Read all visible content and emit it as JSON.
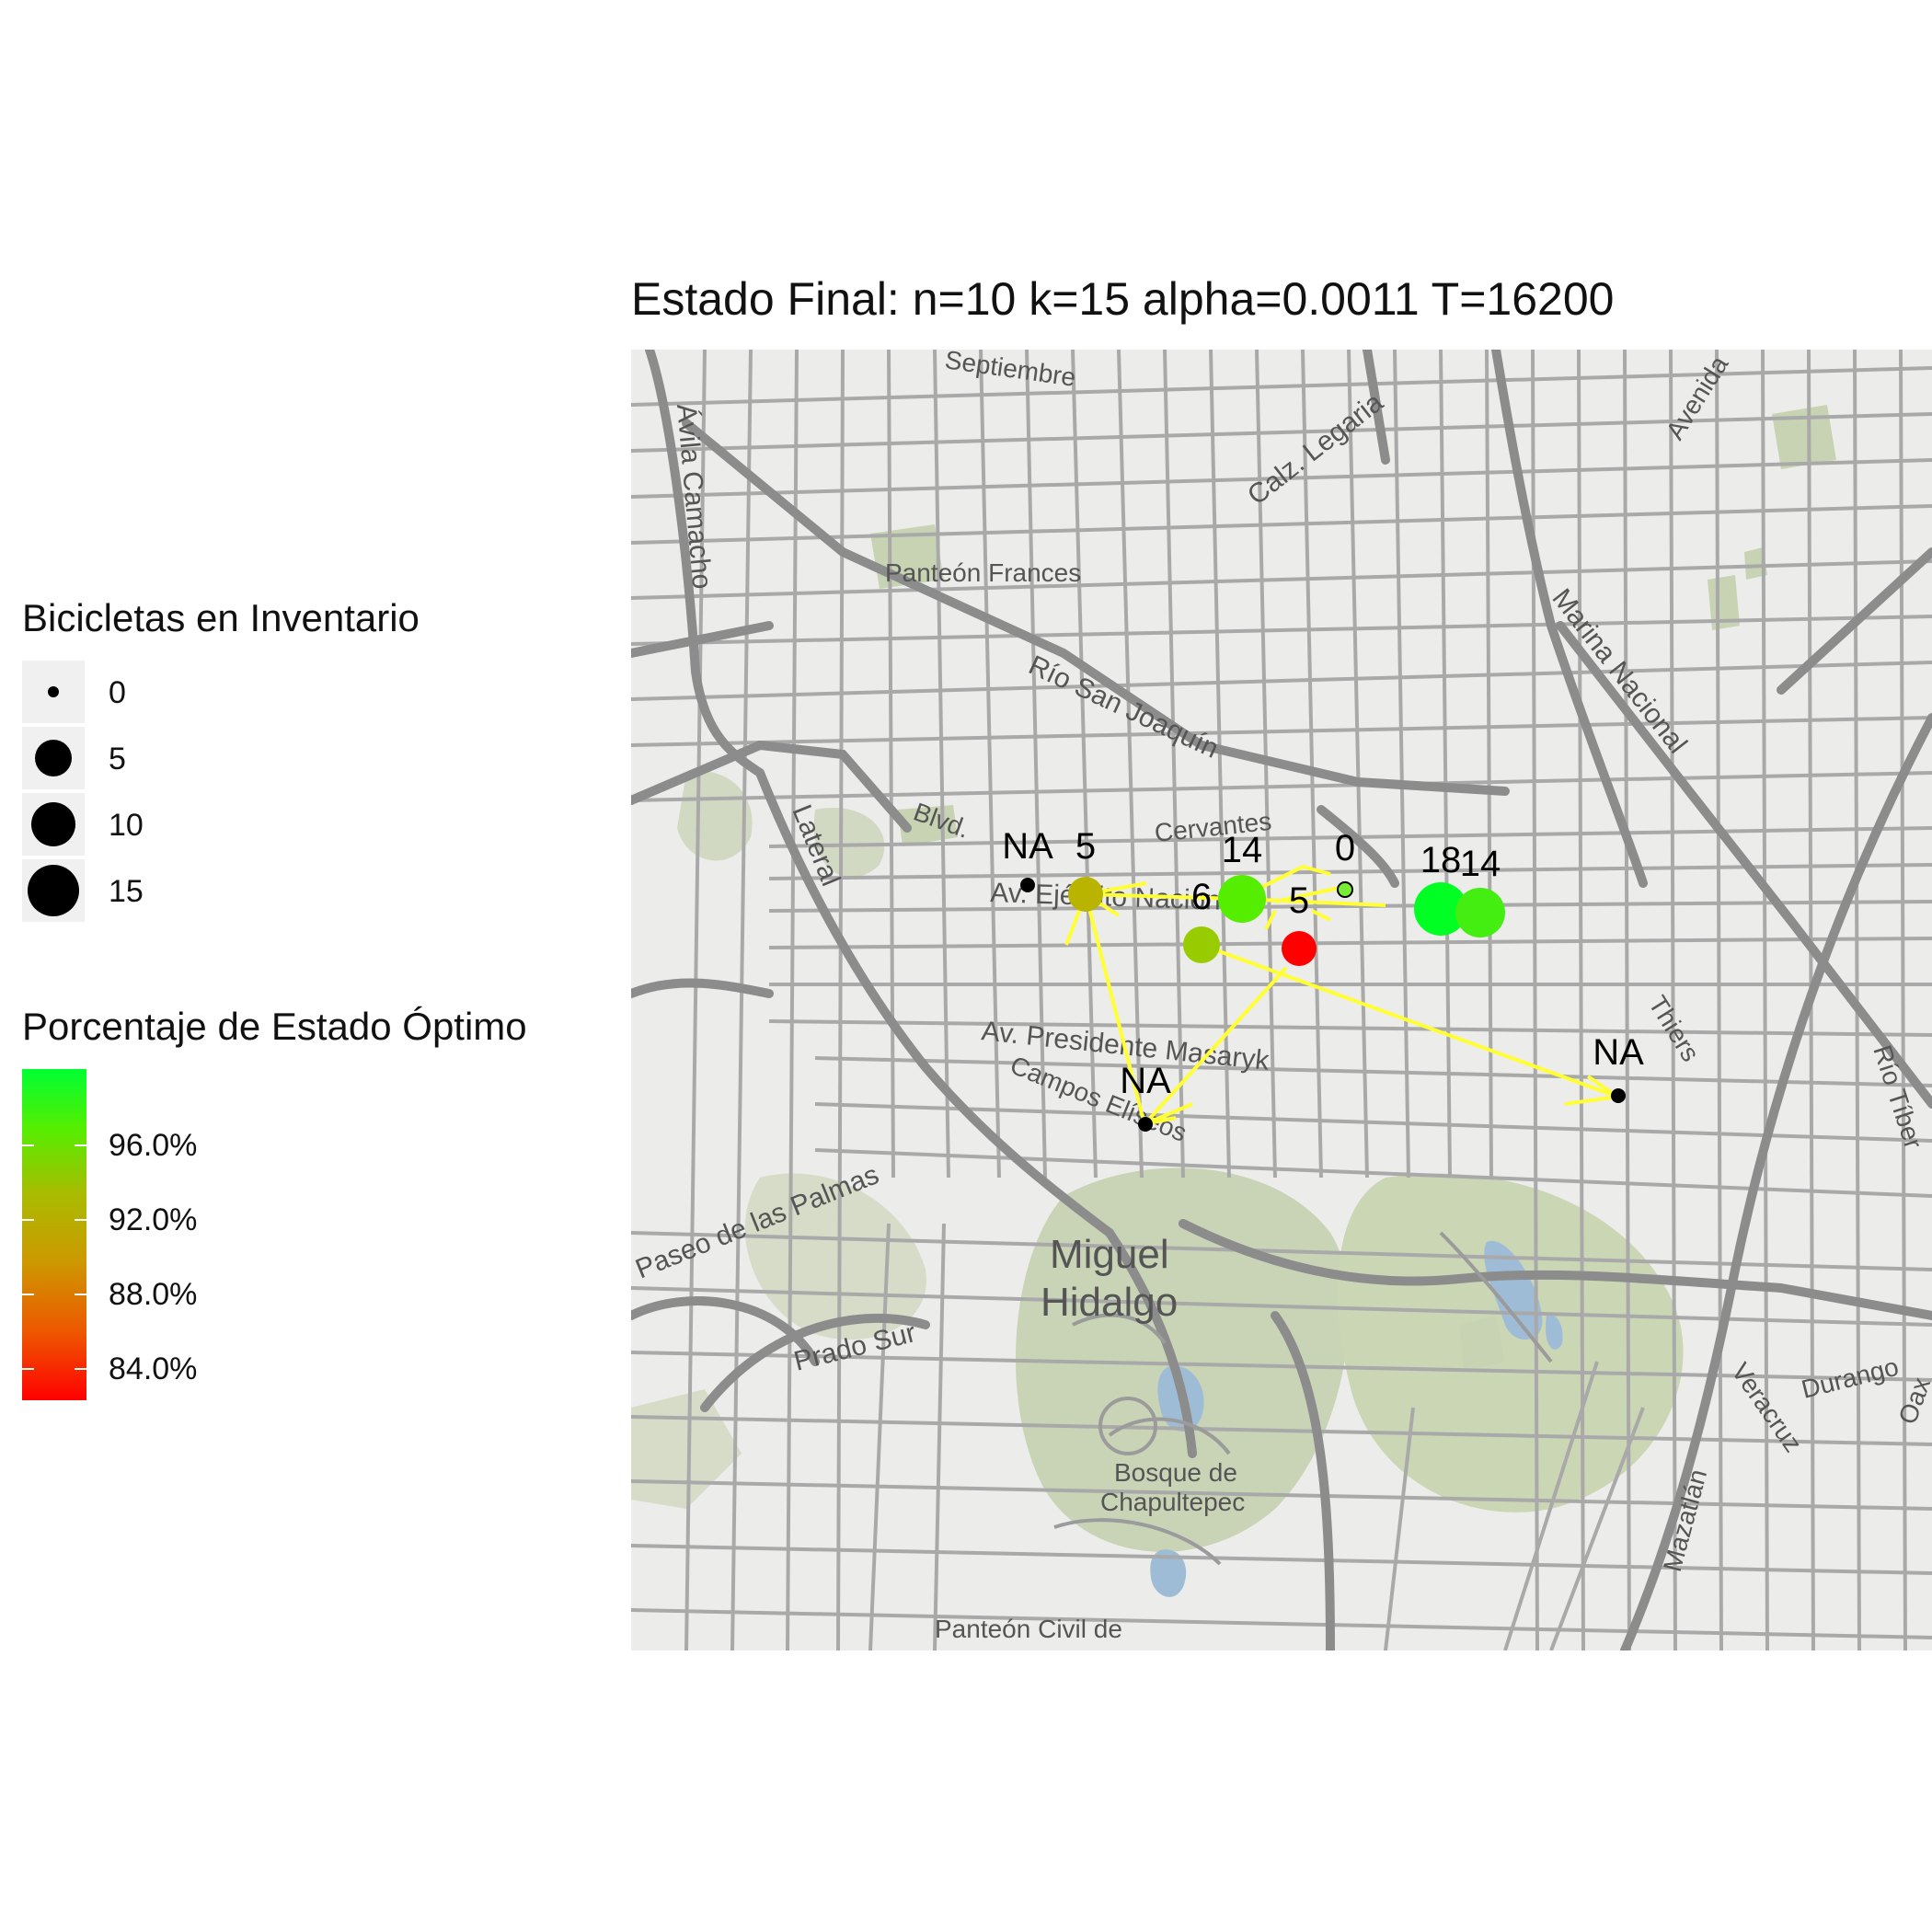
{
  "title": "Estado Final: n=10 k=15 alpha=0.0011 T=16200",
  "legend_size": {
    "title": "Bicicletas en Inventario",
    "entries": [
      "0",
      "5",
      "10",
      "15"
    ]
  },
  "legend_color": {
    "title": "Porcentaje de Estado Óptimo",
    "ticks": [
      "96.0%",
      "92.0%",
      "88.0%",
      "84.0%"
    ],
    "color_high": "#00ff33",
    "color_low": "#ff0000"
  },
  "map_labels": {
    "panteon_frances": "Panteón Frances",
    "rio_san_joaquin": "Río San Joaquín",
    "calz_legaria": "Calz. Legaria",
    "marina_nacional": "Marina Nacional",
    "camacho": "Ávila Camacho",
    "lateral": "Lateral",
    "blvd": "Blvd.",
    "cervantes": "Cervantes",
    "ejercito": "Av. Ejército Nacional",
    "masaryk": "Av. Presidente Masaryk",
    "campos_eliseos": "Campos Elíseos",
    "paseo_palmas": "Paseo de las Palmas",
    "miguel": "Miguel",
    "hidalgo": "Hidalgo",
    "prado_sur": "Prado Sur",
    "bosque1": "Bosque de",
    "bosque2": "Chapultepec",
    "panteon_civil": "Panteón Civil de",
    "thiers": "Thiers",
    "rio_tiber": "Río Tíber",
    "durango": "Durango",
    "veracruz": "Veracruz",
    "mazatlan": "Mazatlán",
    "avenida": "Avenida",
    "septiembre": "Septiembre",
    "oax": "Oax"
  },
  "stations": [
    {
      "label": "NA",
      "inventory": null,
      "color": "#000000"
    },
    {
      "label": "5",
      "inventory": 5,
      "color": "#b8b400"
    },
    {
      "label": "6",
      "inventory": 6,
      "color": "#99cc00"
    },
    {
      "label": "14",
      "inventory": 14,
      "color": "#55ee00"
    },
    {
      "label": "5",
      "inventory": 5,
      "color": "#ff0000"
    },
    {
      "label": "0",
      "inventory": 0,
      "color": "#77ee33"
    },
    {
      "label": "18",
      "inventory": 18,
      "color": "#00ff22"
    },
    {
      "label": "14",
      "inventory": 14,
      "color": "#44ee11"
    },
    {
      "label": "NA",
      "inventory": null,
      "color": "#000000"
    },
    {
      "label": "NA",
      "inventory": null,
      "color": "#000000"
    }
  ],
  "route_color": "#ffff33"
}
